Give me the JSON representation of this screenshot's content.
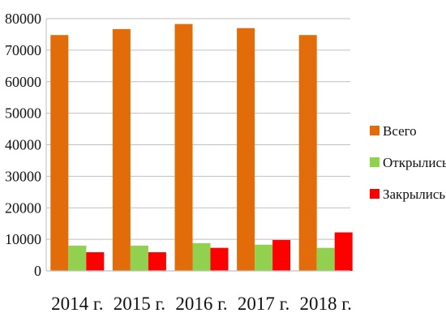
{
  "chart_data": {
    "type": "bar",
    "categories": [
      "2014 г.",
      "2015 г.",
      "2016 г.",
      "2017 г.",
      "2018 г."
    ],
    "series": [
      {
        "name": "Всего",
        "color": "#E36C0A",
        "values": [
          74800,
          76700,
          78300,
          77000,
          74800
        ]
      },
      {
        "name": "Открылись",
        "color": "#92D050",
        "values": [
          8000,
          8000,
          8800,
          8300,
          7300
        ]
      },
      {
        "name": "Закрылись",
        "color": "#FF0000",
        "values": [
          5900,
          5900,
          7300,
          9800,
          12200
        ]
      }
    ],
    "y_ticks": [
      "0",
      "10000",
      "20000",
      "30000",
      "40000",
      "50000",
      "60000",
      "70000",
      "80000"
    ],
    "ylim": [
      0,
      80000
    ],
    "grid": true,
    "legend_position": "right"
  }
}
